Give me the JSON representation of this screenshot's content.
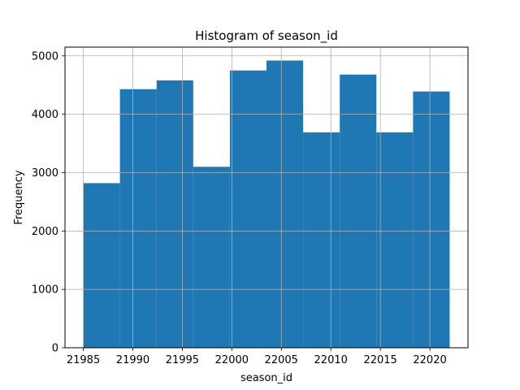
{
  "chart_data": {
    "type": "bar",
    "title": "Histogram of season_id",
    "xlabel": "season_id",
    "ylabel": "Frequency",
    "xlim": [
      21983.15,
      22023.85
    ],
    "ylim": [
      0,
      5150
    ],
    "grid": true,
    "bar_color": "#1f77b4",
    "bin_edges": [
      21985,
      21988.7,
      21992.4,
      21996.1,
      21999.8,
      22003.5,
      22007.2,
      22010.9,
      22014.6,
      22018.3,
      22022
    ],
    "values": [
      2820,
      4430,
      4580,
      3100,
      4750,
      4920,
      3690,
      4680,
      3690,
      4390
    ],
    "xticks": [
      21985,
      21990,
      21995,
      22000,
      22005,
      22010,
      22015,
      22020
    ],
    "yticks": [
      0,
      1000,
      2000,
      3000,
      4000,
      5000
    ]
  }
}
